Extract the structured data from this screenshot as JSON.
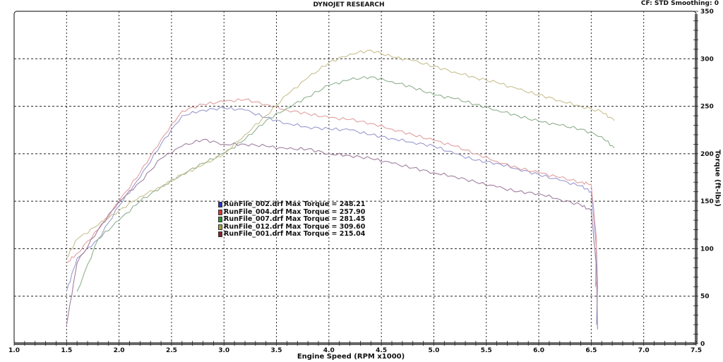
{
  "header": {
    "title": "DYNOJET RESEARCH",
    "correction": "CF: STD  Smoothing: 0"
  },
  "legend": [
    {
      "label": "RunFile_002.drf Max Torque = 248.21",
      "color": "#2233cc"
    },
    {
      "label": "RunFile_004.drf Max Torque = 257.90",
      "color": "#dd3333"
    },
    {
      "label": "RunFile_007.drf Max Torque = 281.45",
      "color": "#229933"
    },
    {
      "label": "RunFile_012.drf Max Torque = 309.60",
      "color": "#a8a040"
    },
    {
      "label": "RunFile_001.drf Max Torque = 215.04",
      "color": "#882222"
    }
  ],
  "chart_data": {
    "type": "line",
    "title": "DYNOJET RESEARCH",
    "subtitle": "CF: STD  Smoothing: 0",
    "xlabel": "Engine Speed (RPM x1000)",
    "ylabel": "Torque (ft-lbs)",
    "xlim": [
      1.0,
      7.5
    ],
    "ylim": [
      0,
      350
    ],
    "x_ticks": [
      "1.0",
      "1.5",
      "2.0",
      "2.5",
      "3.0",
      "3.5",
      "4.0",
      "4.5",
      "5.0",
      "5.5",
      "6.0",
      "6.5",
      "7.0",
      "7.5"
    ],
    "y_ticks": [
      "0",
      "50",
      "100",
      "150",
      "200",
      "250",
      "300",
      "350"
    ],
    "grid": true,
    "legend_position": "inside-center-left",
    "series": [
      {
        "name": "RunFile_002.drf",
        "max_torque": 248.21,
        "color": "#9a9ad0",
        "x": [
          1.5,
          1.6,
          1.8,
          2.0,
          2.2,
          2.4,
          2.6,
          2.8,
          3.0,
          3.2,
          3.4,
          3.6,
          3.8,
          4.0,
          4.2,
          4.4,
          4.6,
          4.8,
          5.0,
          5.2,
          5.4,
          5.6,
          5.8,
          6.0,
          6.2,
          6.4,
          6.5,
          6.55,
          6.56,
          6.55
        ],
        "y": [
          55,
          90,
          110,
          145,
          175,
          210,
          240,
          246,
          248,
          246,
          238,
          232,
          228,
          226,
          225,
          220,
          216,
          212,
          208,
          200,
          193,
          190,
          184,
          178,
          172,
          166,
          160,
          100,
          60,
          20
        ]
      },
      {
        "name": "RunFile_004.drf",
        "max_torque": 257.9,
        "color": "#e0a0a0",
        "x": [
          1.5,
          1.6,
          1.8,
          2.0,
          2.2,
          2.4,
          2.6,
          2.8,
          3.0,
          3.2,
          3.4,
          3.6,
          3.8,
          4.0,
          4.2,
          4.4,
          4.6,
          4.8,
          5.0,
          5.2,
          5.4,
          5.6,
          5.8,
          6.0,
          6.2,
          6.4,
          6.5,
          6.55,
          6.54,
          6.56
        ],
        "y": [
          85,
          95,
          120,
          150,
          180,
          215,
          245,
          252,
          255,
          257,
          252,
          246,
          242,
          238,
          236,
          232,
          226,
          220,
          214,
          208,
          200,
          192,
          185,
          180,
          175,
          170,
          168,
          110,
          60,
          70
        ]
      },
      {
        "name": "RunFile_007.drf",
        "max_torque": 281.45,
        "color": "#90b090",
        "x": [
          1.6,
          1.8,
          2.0,
          2.2,
          2.4,
          2.6,
          2.8,
          3.0,
          3.2,
          3.4,
          3.6,
          3.8,
          4.0,
          4.2,
          4.4,
          4.6,
          4.8,
          5.0,
          5.2,
          5.4,
          5.6,
          5.8,
          6.0,
          6.2,
          6.4,
          6.6,
          6.72
        ],
        "y": [
          55,
          110,
          130,
          150,
          165,
          178,
          190,
          200,
          215,
          235,
          248,
          260,
          272,
          278,
          281,
          276,
          270,
          262,
          258,
          252,
          246,
          240,
          234,
          230,
          226,
          218,
          206
        ]
      },
      {
        "name": "RunFile_012.drf",
        "max_torque": 309.6,
        "color": "#c8c090",
        "x": [
          1.5,
          1.6,
          1.8,
          2.0,
          2.2,
          2.4,
          2.6,
          2.8,
          3.0,
          3.2,
          3.4,
          3.6,
          3.8,
          4.0,
          4.2,
          4.4,
          4.6,
          4.8,
          5.0,
          5.2,
          5.4,
          5.6,
          5.8,
          6.0,
          6.2,
          6.4,
          6.6,
          6.72
        ],
        "y": [
          90,
          110,
          125,
          140,
          155,
          165,
          178,
          188,
          200,
          220,
          240,
          262,
          280,
          296,
          305,
          309,
          302,
          298,
          292,
          286,
          280,
          275,
          268,
          262,
          256,
          250,
          244,
          235
        ]
      },
      {
        "name": "RunFile_001.drf",
        "max_torque": 215.04,
        "color": "#a080a0",
        "x": [
          1.5,
          1.6,
          1.8,
          2.0,
          2.2,
          2.4,
          2.6,
          2.8,
          3.0,
          3.2,
          3.4,
          3.6,
          3.8,
          4.0,
          4.2,
          4.4,
          4.6,
          4.8,
          5.0,
          5.2,
          5.4,
          5.6,
          5.8,
          6.0,
          6.2,
          6.4,
          6.5,
          6.55,
          6.56
        ],
        "y": [
          20,
          85,
          120,
          150,
          170,
          195,
          208,
          215,
          210,
          210,
          208,
          205,
          205,
          200,
          198,
          195,
          190,
          185,
          180,
          176,
          170,
          165,
          160,
          158,
          152,
          146,
          140,
          80,
          15
        ]
      }
    ]
  }
}
